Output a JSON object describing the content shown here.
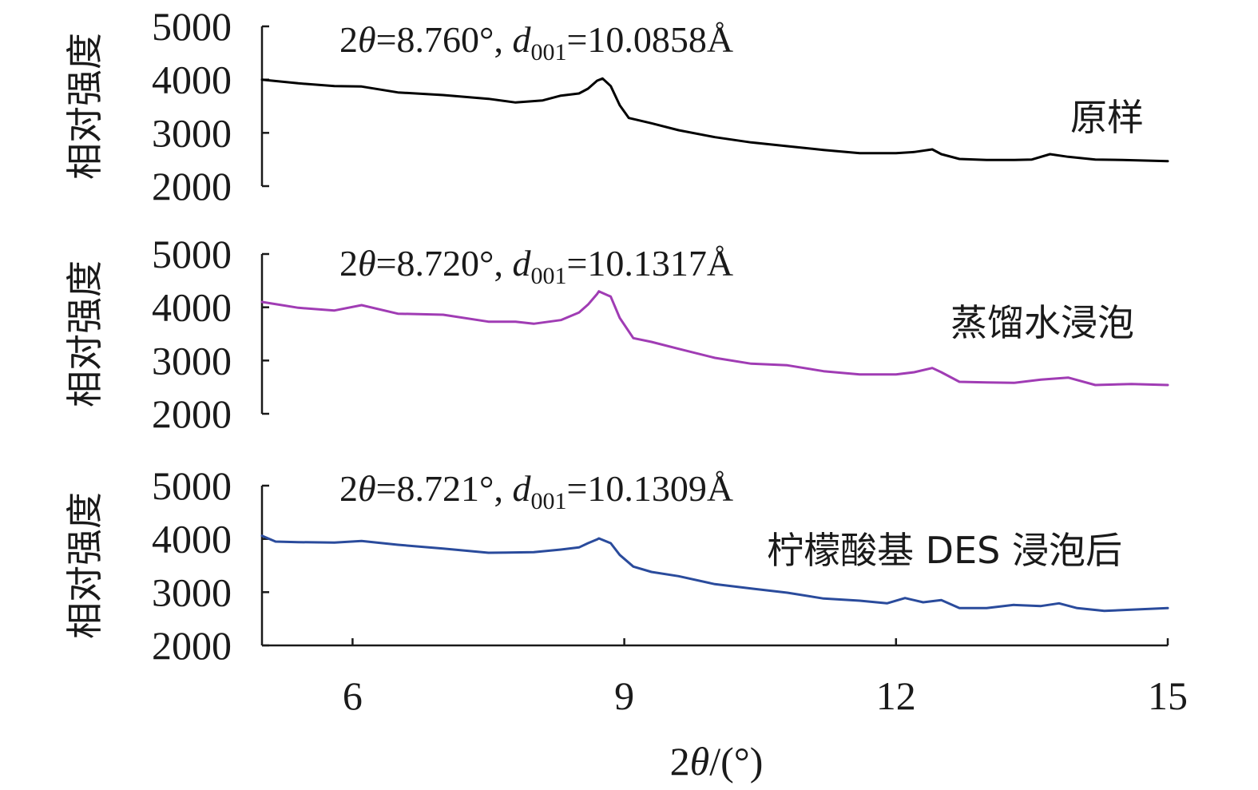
{
  "chart_data": {
    "type": "line",
    "xlabel_prefix": "2",
    "xlabel_theta": "θ",
    "xlabel_suffix": "/(°)",
    "xlim": [
      5,
      15
    ],
    "xticks": [
      "6",
      "9",
      "12",
      "15"
    ],
    "panels": [
      {
        "ylabel": "相对强度",
        "ylim": [
          2000,
          5000
        ],
        "yticks": [
          "2000",
          "3000",
          "4000",
          "5000"
        ],
        "series_name": "原样",
        "color": "#000000",
        "annotation": {
          "p1": "2",
          "theta": "θ",
          "p2": "=8.760°, ",
          "d": "d",
          "sub": "001",
          "p3": "=10.0858Å"
        },
        "x": [
          5.0,
          5.4,
          5.8,
          6.1,
          6.5,
          7.0,
          7.5,
          7.8,
          8.1,
          8.3,
          8.5,
          8.6,
          8.7,
          8.76,
          8.85,
          8.95,
          9.05,
          9.3,
          9.6,
          10.0,
          10.4,
          10.8,
          11.2,
          11.6,
          12.0,
          12.2,
          12.4,
          12.5,
          12.7,
          13.0,
          13.3,
          13.5,
          13.7,
          13.9,
          14.2,
          14.5,
          15.0
        ],
        "y": [
          4000,
          3930,
          3880,
          3870,
          3760,
          3710,
          3640,
          3570,
          3610,
          3700,
          3740,
          3830,
          3980,
          4020,
          3880,
          3520,
          3280,
          3180,
          3050,
          2920,
          2820,
          2750,
          2680,
          2620,
          2620,
          2640,
          2690,
          2600,
          2510,
          2490,
          2490,
          2500,
          2600,
          2550,
          2500,
          2490,
          2470
        ]
      },
      {
        "ylabel": "相对强度",
        "ylim": [
          2000,
          5000
        ],
        "yticks": [
          "2000",
          "3000",
          "4000",
          "5000"
        ],
        "series_name": "蒸馏水浸泡",
        "color": "#a03cb4",
        "annotation": {
          "p1": "2",
          "theta": "θ",
          "p2": "=8.720°, ",
          "d": "d",
          "sub": "001",
          "p3": "=10.1317Å"
        },
        "x": [
          5.0,
          5.4,
          5.8,
          6.1,
          6.5,
          7.0,
          7.5,
          7.8,
          8.0,
          8.3,
          8.5,
          8.6,
          8.7,
          8.72,
          8.85,
          8.95,
          9.1,
          9.3,
          9.6,
          10.0,
          10.4,
          10.8,
          11.2,
          11.6,
          12.0,
          12.2,
          12.4,
          12.5,
          12.7,
          13.0,
          13.3,
          13.6,
          13.9,
          14.2,
          14.6,
          15.0
        ],
        "y": [
          4100,
          3990,
          3940,
          4040,
          3880,
          3860,
          3730,
          3730,
          3690,
          3760,
          3900,
          4050,
          4250,
          4300,
          4200,
          3800,
          3420,
          3350,
          3220,
          3050,
          2940,
          2910,
          2800,
          2740,
          2740,
          2780,
          2860,
          2780,
          2600,
          2590,
          2580,
          2640,
          2680,
          2540,
          2560,
          2540
        ]
      },
      {
        "ylabel": "相对强度",
        "ylim": [
          2000,
          5000
        ],
        "yticks": [
          "2000",
          "3000",
          "4000",
          "5000"
        ],
        "series_name": "柠檬酸基 DES 浸泡后",
        "color": "#2a4b9c",
        "annotation": {
          "p1": "2",
          "theta": "θ",
          "p2": "=8.721°, ",
          "d": "d",
          "sub": "001",
          "p3": "=10.1309Å"
        },
        "x": [
          5.0,
          5.15,
          5.4,
          5.8,
          6.1,
          6.5,
          7.0,
          7.5,
          8.0,
          8.3,
          8.5,
          8.6,
          8.7,
          8.72,
          8.85,
          8.95,
          9.1,
          9.3,
          9.6,
          10.0,
          10.4,
          10.8,
          11.2,
          11.6,
          11.9,
          12.1,
          12.3,
          12.5,
          12.7,
          13.0,
          13.3,
          13.6,
          13.8,
          14.0,
          14.3,
          14.6,
          15.0
        ],
        "y": [
          4060,
          3950,
          3940,
          3930,
          3960,
          3890,
          3820,
          3740,
          3750,
          3800,
          3840,
          3920,
          3990,
          4010,
          3920,
          3700,
          3480,
          3380,
          3300,
          3150,
          3070,
          2990,
          2880,
          2840,
          2790,
          2890,
          2810,
          2850,
          2700,
          2700,
          2760,
          2740,
          2790,
          2700,
          2650,
          2670,
          2700
        ]
      }
    ]
  }
}
